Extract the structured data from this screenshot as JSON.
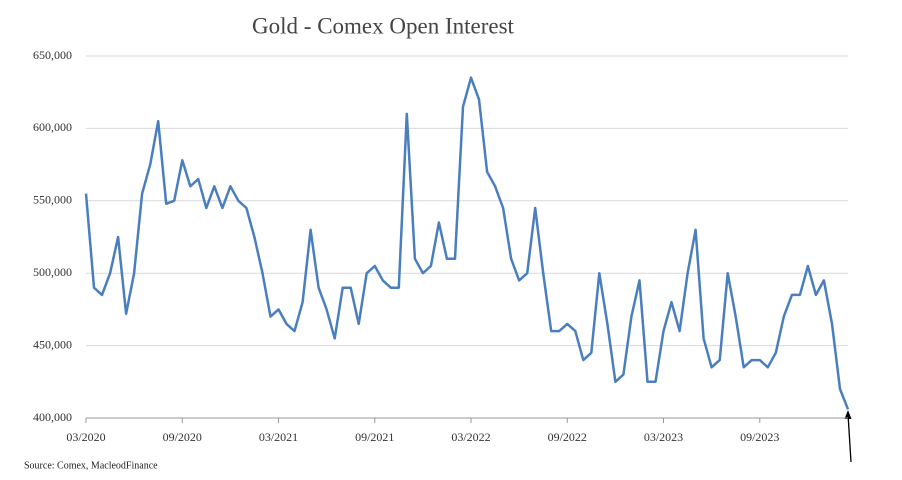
{
  "chart_data": {
    "type": "line",
    "title": "Gold - Comex Open Interest",
    "source": "Source: Comex,  MacleodFinance",
    "color": "#4a7ebf",
    "grid": true,
    "ylim": [
      400000,
      650000
    ],
    "yticks": [
      {
        "value": 400000,
        "label": "400,000"
      },
      {
        "value": 450000,
        "label": "450,000"
      },
      {
        "value": 500000,
        "label": "500,000"
      },
      {
        "value": 550000,
        "label": "550,000"
      },
      {
        "value": 600000,
        "label": "600,000"
      },
      {
        "value": 650000,
        "label": "650,000"
      }
    ],
    "categories": [
      "03/2020",
      null,
      null,
      null,
      null,
      null,
      null,
      null,
      null,
      null,
      null,
      null,
      "09/2020",
      null,
      null,
      null,
      null,
      null,
      null,
      null,
      null,
      null,
      null,
      null,
      "03/2021",
      null,
      null,
      null,
      null,
      null,
      null,
      null,
      null,
      null,
      null,
      null,
      "09/2021",
      null,
      null,
      null,
      null,
      null,
      null,
      null,
      null,
      null,
      null,
      null,
      "03/2022",
      null,
      null,
      null,
      null,
      null,
      null,
      null,
      null,
      null,
      null,
      null,
      "09/2022",
      null,
      null,
      null,
      null,
      null,
      null,
      null,
      null,
      null,
      null,
      null,
      "03/2023",
      null,
      null,
      null,
      null,
      null,
      null,
      null,
      null,
      null,
      null,
      null,
      "09/2023",
      null,
      null,
      null,
      null,
      null,
      null,
      null,
      null,
      null,
      null,
      null
    ],
    "values": [
      555000,
      490000,
      485000,
      500000,
      525000,
      472000,
      500000,
      555000,
      575000,
      605000,
      548000,
      550000,
      578000,
      560000,
      565000,
      545000,
      560000,
      545000,
      560000,
      550000,
      545000,
      525000,
      500000,
      470000,
      475000,
      465000,
      460000,
      480000,
      530000,
      490000,
      475000,
      455000,
      490000,
      490000,
      465000,
      500000,
      505000,
      495000,
      490000,
      490000,
      610000,
      510000,
      500000,
      505000,
      535000,
      510000,
      510000,
      615000,
      635000,
      620000,
      570000,
      560000,
      545000,
      510000,
      495000,
      500000,
      545000,
      500000,
      460000,
      460000,
      465000,
      460000,
      440000,
      445000,
      500000,
      465000,
      425000,
      430000,
      470000,
      495000,
      425000,
      425000,
      460000,
      480000,
      460000,
      500000,
      530000,
      455000,
      435000,
      440000,
      500000,
      470000,
      435000,
      440000,
      440000,
      435000,
      445000,
      470000,
      485000,
      485000,
      505000,
      485000,
      495000,
      465000,
      420000,
      406000
    ]
  }
}
